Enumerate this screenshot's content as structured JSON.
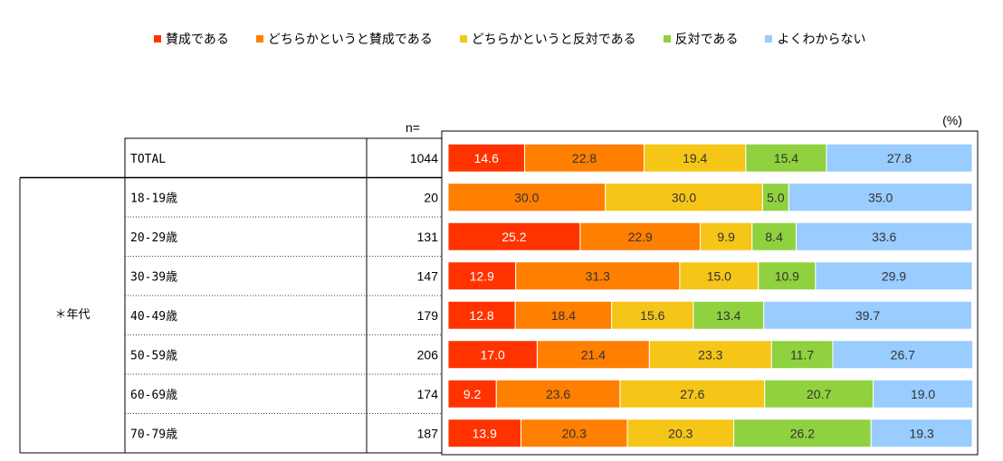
{
  "legend": [
    {
      "label": "賛成である",
      "color": "#ff3300"
    },
    {
      "label": "どちらかというと賛成である",
      "color": "#ff7f00"
    },
    {
      "label": "どちらかというと反対である",
      "color": "#f5c518"
    },
    {
      "label": "反対である",
      "color": "#8fd13f"
    },
    {
      "label": "よくわからない",
      "color": "#99ccff"
    }
  ],
  "n_header": "n=",
  "unit_label": "(%)",
  "group_label": "＊年代",
  "chart_data": {
    "type": "bar",
    "orientation": "horizontal",
    "stacked": true,
    "percent": true,
    "categories": [
      "TOTAL",
      "18-19歳",
      "20-29歳",
      "30-39歳",
      "40-49歳",
      "50-59歳",
      "60-69歳",
      "70-79歳"
    ],
    "n": [
      1044,
      20,
      131,
      147,
      179,
      206,
      174,
      187
    ],
    "xlim": [
      0,
      100
    ],
    "series": [
      {
        "name": "賛成である",
        "color": "#ff3300",
        "values": [
          14.6,
          null,
          25.2,
          12.9,
          12.8,
          17.0,
          9.2,
          13.9
        ]
      },
      {
        "name": "どちらかというと賛成である",
        "color": "#ff7f00",
        "values": [
          22.8,
          30.0,
          22.9,
          31.3,
          18.4,
          21.4,
          23.6,
          20.3
        ]
      },
      {
        "name": "どちらかというと反対である",
        "color": "#f5c518",
        "values": [
          19.4,
          30.0,
          9.9,
          15.0,
          15.6,
          23.3,
          27.6,
          20.3
        ]
      },
      {
        "name": "反対である",
        "color": "#8fd13f",
        "values": [
          15.4,
          5.0,
          8.4,
          10.9,
          13.4,
          11.7,
          20.7,
          26.2
        ]
      },
      {
        "name": "よくわからない",
        "color": "#99ccff",
        "values": [
          27.8,
          35.0,
          33.6,
          29.9,
          39.7,
          26.7,
          19.0,
          19.3
        ]
      }
    ]
  }
}
